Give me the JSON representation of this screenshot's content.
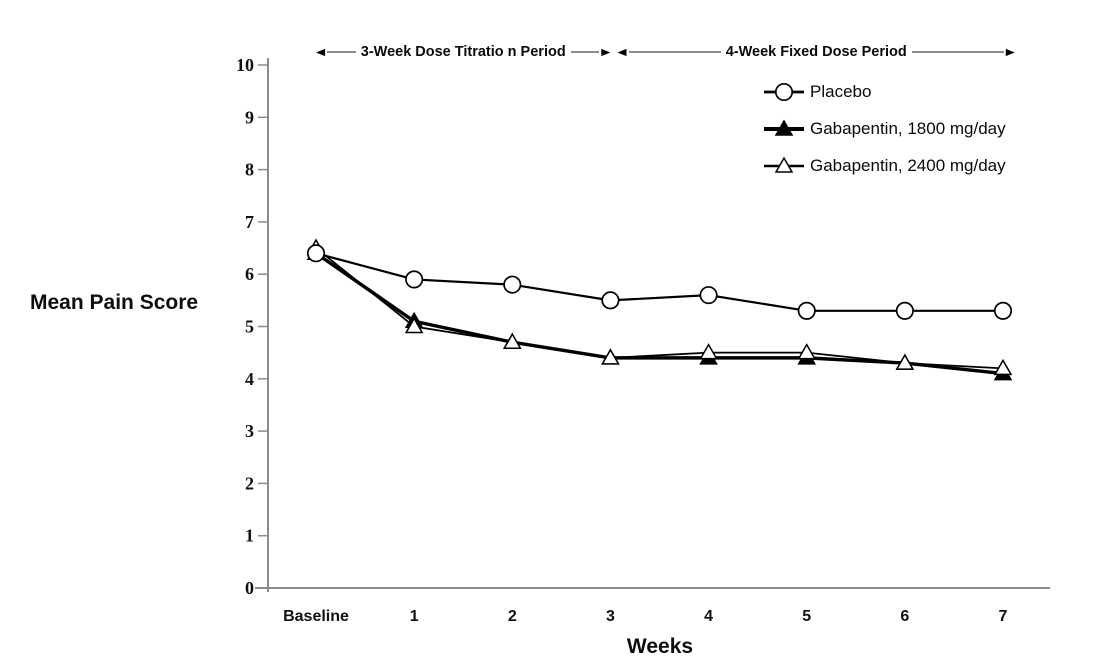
{
  "chart_data": {
    "type": "line",
    "title": "",
    "xlabel": "Weeks",
    "ylabel": "Mean Pain Score",
    "ylim": [
      0,
      10
    ],
    "yticks": [
      0,
      1,
      2,
      3,
      4,
      5,
      6,
      7,
      8,
      9,
      10
    ],
    "categories": [
      "Baseline",
      "1",
      "2",
      "3",
      "4",
      "5",
      "6",
      "7"
    ],
    "series": [
      {
        "name": "Placebo",
        "marker": "open-circle",
        "line_style": "medium",
        "values": [
          6.4,
          5.9,
          5.8,
          5.5,
          5.6,
          5.3,
          5.3,
          5.3
        ]
      },
      {
        "name": "Gabapentin, 1800 mg/day",
        "marker": "filled-triangle",
        "line_style": "thick",
        "values": [
          6.4,
          5.1,
          4.7,
          4.4,
          4.4,
          4.4,
          4.3,
          4.1
        ]
      },
      {
        "name": "Gabapentin, 2400 mg/day",
        "marker": "open-triangle",
        "line_style": "thin",
        "values": [
          6.5,
          5.0,
          4.7,
          4.4,
          4.5,
          4.5,
          4.3,
          4.2
        ]
      }
    ],
    "legend_position": "top-right",
    "grid": false,
    "annotations": [
      {
        "label": "3-Week Dose Titratio n Period",
        "from_category_index": 0,
        "to_category_index": 3
      },
      {
        "label": "4-Week Fixed Dose Period",
        "from_category_index": 3,
        "to_category_index": 7
      }
    ],
    "icons": {
      "arrow_left": "◀",
      "arrow_right": "▶"
    },
    "colors": {
      "line": "#000000",
      "axis": "#8c8c8c",
      "marker_fill_open": "#ffffff",
      "text": "#111111"
    }
  }
}
